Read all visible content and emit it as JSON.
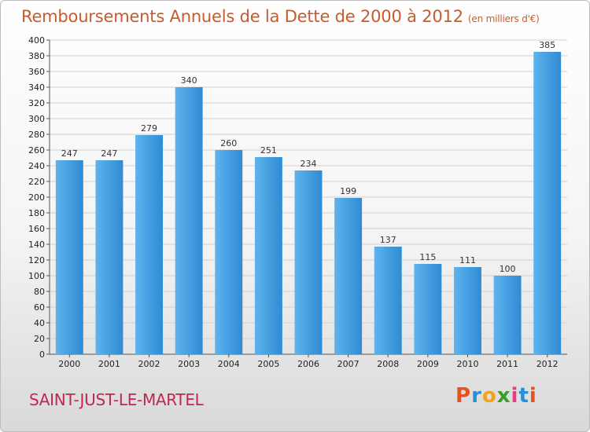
{
  "title": "Remboursements Annuels de la Dette de 2000 à 2012",
  "subtitle": "(en milliers d'€)",
  "commune": "SAINT-JUST-LE-MARTEL",
  "logo": {
    "letters": [
      "P",
      "r",
      "o",
      "x",
      "i",
      "t",
      "i"
    ],
    "colors": [
      "#e8511f",
      "#2b8fd8",
      "#f4a21d",
      "#3a9e2a",
      "#e53a84",
      "#2b8fd8",
      "#e8511f"
    ]
  },
  "colors": {
    "bar": "#3f9be0",
    "bar_light": "#5fb3ee",
    "bar_dark": "#2a7fc4",
    "title": "#c85a2c",
    "commune": "#c0284f"
  },
  "chart_data": {
    "type": "bar",
    "title": "Remboursements Annuels de la Dette de 2000 à 2012",
    "subtitle": "(en milliers d'€)",
    "categories": [
      "2000",
      "2001",
      "2002",
      "2003",
      "2004",
      "2005",
      "2006",
      "2007",
      "2008",
      "2009",
      "2010",
      "2011",
      "2012"
    ],
    "values": [
      247,
      247,
      279,
      340,
      260,
      251,
      234,
      199,
      137,
      115,
      111,
      100,
      385
    ],
    "ylim": [
      0,
      400
    ],
    "ytick_step": 20,
    "grid": true
  }
}
